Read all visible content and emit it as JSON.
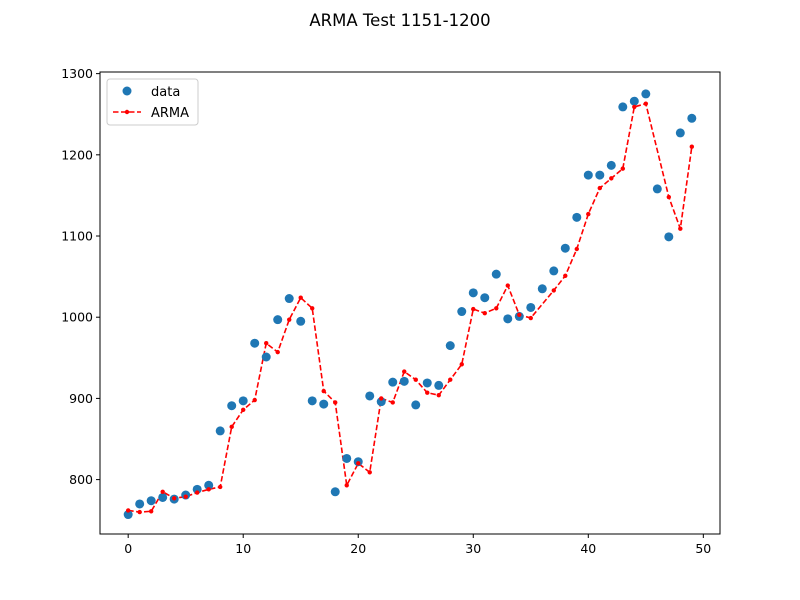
{
  "chart_data": {
    "type": "line",
    "title": "ARMA Test 1151-1200",
    "xlabel": "",
    "ylabel": "",
    "xlim": [
      -2.45,
      51.45
    ],
    "ylim": [
      733,
      1302
    ],
    "x_ticks": [
      0,
      10,
      20,
      30,
      40,
      50
    ],
    "y_ticks": [
      800,
      900,
      1000,
      1100,
      1200,
      1300
    ],
    "grid": false,
    "legend_position": "upper-left",
    "colors": {
      "data": "#1f77b4",
      "arma": "#ff0000"
    },
    "series": [
      {
        "name": "data",
        "style": "markers",
        "x": [
          0,
          1,
          2,
          3,
          4,
          5,
          6,
          7,
          8,
          9,
          10,
          11,
          12,
          13,
          14,
          15,
          16,
          17,
          18,
          19,
          20,
          21,
          22,
          23,
          24,
          25,
          26,
          27,
          28,
          29,
          30,
          31,
          32,
          33,
          34,
          35,
          36,
          37,
          38,
          39,
          40,
          41,
          42,
          43,
          44,
          45,
          46,
          47,
          48,
          49
        ],
        "values": [
          757,
          770,
          774,
          778,
          776,
          781,
          788,
          793,
          860,
          891,
          897,
          968,
          951,
          997,
          1023,
          995,
          897,
          893,
          785,
          826,
          822,
          903,
          896,
          920,
          921,
          892,
          919,
          916,
          965,
          1007,
          1030,
          1024,
          1053,
          998,
          1001,
          1012,
          1035,
          1057,
          1085,
          1123,
          1175,
          1175,
          1187,
          1259,
          1266,
          1275,
          1158,
          1099,
          1227,
          1245
        ]
      },
      {
        "name": "ARMA",
        "style": "dashed-line-dots",
        "x": [
          0,
          1,
          2,
          3,
          4,
          5,
          6,
          7,
          8,
          9,
          10,
          11,
          12,
          13,
          14,
          15,
          16,
          17,
          18,
          19,
          20,
          21,
          22,
          23,
          24,
          25,
          26,
          27,
          28,
          29,
          30,
          31,
          32,
          33,
          34,
          35,
          37,
          38,
          39,
          40,
          41,
          42,
          43,
          44,
          45,
          47,
          48,
          49
        ],
        "values": [
          762,
          760,
          761,
          785,
          777,
          779,
          784,
          788,
          791,
          865,
          886,
          898,
          968,
          957,
          997,
          1024,
          1011,
          909,
          895,
          793,
          820,
          809,
          900,
          895,
          933,
          923,
          907,
          904,
          923,
          942,
          1010,
          1005,
          1011,
          1039,
          1003,
          999,
          1033,
          1051,
          1084,
          1127,
          1159,
          1171,
          1183,
          1259,
          1263,
          1148,
          1109,
          1210
        ]
      }
    ]
  }
}
